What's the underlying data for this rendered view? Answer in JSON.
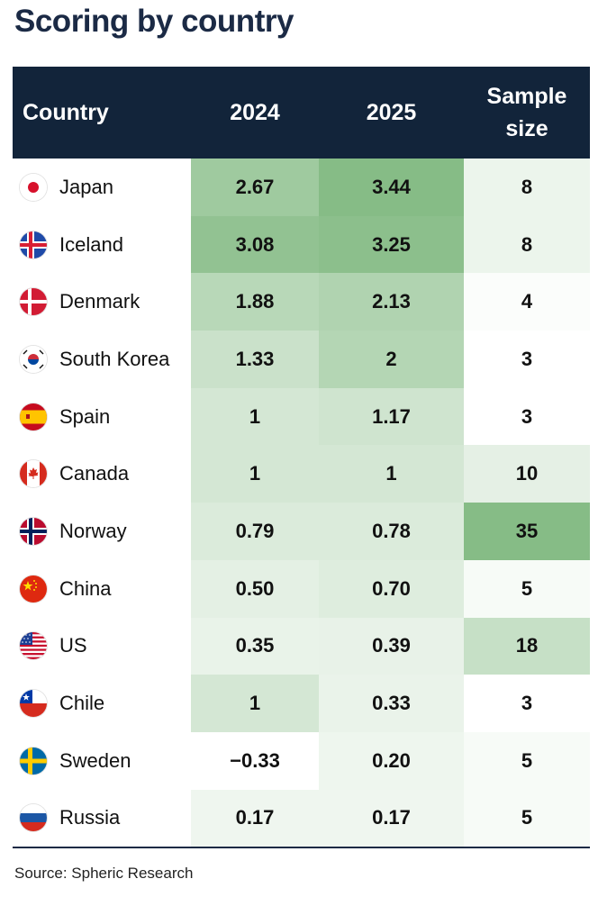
{
  "title": "Scoring by country",
  "source": "Source: Spheric Research",
  "columns": {
    "country": "Country",
    "y2024": "2024",
    "y2025": "2025",
    "sample_size": "Sample size"
  },
  "chart_data": {
    "type": "table",
    "title": "Scoring by country",
    "columns": [
      "Country",
      "2024",
      "2025",
      "Sample size"
    ],
    "rows": [
      {
        "country": "Japan",
        "flag": "japan-flag-icon",
        "y2024": "2.67",
        "y2025": "3.44",
        "sample": "8"
      },
      {
        "country": "Iceland",
        "flag": "iceland-flag-icon",
        "y2024": "3.08",
        "y2025": "3.25",
        "sample": "8"
      },
      {
        "country": "Denmark",
        "flag": "denmark-flag-icon",
        "y2024": "1.88",
        "y2025": "2.13",
        "sample": "4"
      },
      {
        "country": "South Korea",
        "flag": "south-korea-flag-icon",
        "y2024": "1.33",
        "y2025": "2",
        "sample": "3"
      },
      {
        "country": "Spain",
        "flag": "spain-flag-icon",
        "y2024": "1",
        "y2025": "1.17",
        "sample": "3"
      },
      {
        "country": "Canada",
        "flag": "canada-flag-icon",
        "y2024": "1",
        "y2025": "1",
        "sample": "10"
      },
      {
        "country": "Norway",
        "flag": "norway-flag-icon",
        "y2024": "0.79",
        "y2025": "0.78",
        "sample": "35"
      },
      {
        "country": "China",
        "flag": "china-flag-icon",
        "y2024": "0.50",
        "y2025": "0.70",
        "sample": "5"
      },
      {
        "country": "US",
        "flag": "us-flag-icon",
        "y2024": "0.35",
        "y2025": "0.39",
        "sample": "18"
      },
      {
        "country": "Chile",
        "flag": "chile-flag-icon",
        "y2024": "1",
        "y2025": "0.33",
        "sample": "3"
      },
      {
        "country": "Sweden",
        "flag": "sweden-flag-icon",
        "y2024": "−0.33",
        "y2025": "0.20",
        "sample": "5"
      },
      {
        "country": "Russia",
        "flag": "russia-flag-icon",
        "y2024": "0.17",
        "y2025": "0.17",
        "sample": "5"
      }
    ]
  },
  "colors": {
    "header_bg": "#12243a",
    "title": "#1b2a45",
    "heat_high": "#86bc86",
    "heat_low": "#ffffff"
  }
}
